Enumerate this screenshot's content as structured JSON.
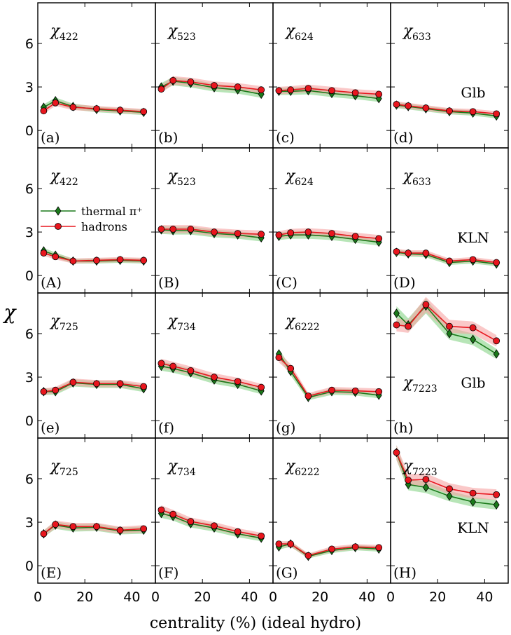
{
  "chart_data": {
    "type": "line",
    "xlabel": "centrality (%)   (ideal hydro)",
    "ylabel": "χ",
    "xlim": [
      0,
      50
    ],
    "ylim": [
      -1.2,
      8.8
    ],
    "x_ticks": [
      0,
      20,
      40
    ],
    "y_ticks": [
      0,
      3,
      6
    ],
    "x": [
      2.5,
      7.5,
      15,
      25,
      35,
      45
    ],
    "series_names": [
      "thermal π⁺",
      "hadrons"
    ],
    "series_colors": [
      "#1a7a1a",
      "#e8161e"
    ],
    "band_colors": [
      "#7ccf7c",
      "#f6a3a3"
    ],
    "panels": [
      {
        "label": "(a)",
        "chi": "χ",
        "sub": "422",
        "model": "Glb",
        "green": [
          1.6,
          2.05,
          1.65,
          1.45,
          1.35,
          1.25
        ],
        "red": [
          1.35,
          1.9,
          1.6,
          1.5,
          1.4,
          1.3
        ]
      },
      {
        "label": "(b)",
        "chi": "χ",
        "sub": "523",
        "green": [
          3.0,
          3.4,
          3.25,
          2.95,
          2.8,
          2.5
        ],
        "red": [
          2.85,
          3.45,
          3.35,
          3.1,
          3.0,
          2.8
        ]
      },
      {
        "label": "(c)",
        "chi": "χ",
        "sub": "624",
        "green": [
          2.7,
          2.7,
          2.75,
          2.55,
          2.4,
          2.2
        ],
        "red": [
          2.75,
          2.8,
          2.9,
          2.75,
          2.6,
          2.5
        ]
      },
      {
        "label": "(d)",
        "chi": "χ",
        "sub": "633",
        "green": [
          1.75,
          1.65,
          1.5,
          1.3,
          1.2,
          1.0
        ],
        "red": [
          1.8,
          1.7,
          1.55,
          1.35,
          1.3,
          1.15
        ]
      },
      {
        "label": "(A)",
        "chi": "χ",
        "sub": "422",
        "model": "KLN",
        "legend": true,
        "green": [
          1.7,
          1.4,
          1.0,
          1.0,
          1.05,
          1.0
        ],
        "red": [
          1.55,
          1.3,
          1.0,
          1.05,
          1.1,
          1.05
        ]
      },
      {
        "label": "(B)",
        "chi": "χ",
        "sub": "523",
        "green": [
          3.15,
          3.1,
          3.1,
          2.9,
          2.8,
          2.6
        ],
        "red": [
          3.2,
          3.2,
          3.2,
          3.0,
          2.9,
          2.85
        ]
      },
      {
        "label": "(C)",
        "chi": "χ",
        "sub": "624",
        "green": [
          2.7,
          2.8,
          2.8,
          2.7,
          2.5,
          2.3
        ],
        "red": [
          2.8,
          2.95,
          3.0,
          2.9,
          2.7,
          2.55
        ]
      },
      {
        "label": "(D)",
        "chi": "χ",
        "sub": "633",
        "green": [
          1.6,
          1.5,
          1.45,
          0.9,
          1.0,
          0.8
        ],
        "red": [
          1.65,
          1.55,
          1.55,
          1.0,
          1.1,
          0.9
        ]
      },
      {
        "label": "(e)",
        "chi": "χ",
        "sub": "725",
        "model": "Glb",
        "green": [
          2.0,
          2.0,
          2.6,
          2.5,
          2.5,
          2.2
        ],
        "red": [
          2.0,
          2.1,
          2.65,
          2.55,
          2.55,
          2.35
        ]
      },
      {
        "label": "(f)",
        "chi": "χ",
        "sub": "734",
        "green": [
          3.75,
          3.6,
          3.3,
          2.8,
          2.5,
          2.05
        ],
        "red": [
          3.95,
          3.75,
          3.45,
          3.0,
          2.7,
          2.3
        ]
      },
      {
        "label": "(g)",
        "chi": "χ",
        "sub": "6222",
        "green": [
          4.6,
          3.4,
          1.6,
          2.0,
          1.95,
          1.75
        ],
        "red": [
          4.35,
          3.6,
          1.7,
          2.1,
          2.05,
          2.0
        ]
      },
      {
        "label": "(h)",
        "chi": "χ",
        "sub": "7223",
        "subLow": true,
        "green": [
          7.4,
          6.6,
          7.9,
          6.0,
          5.6,
          4.6
        ],
        "red": [
          6.6,
          6.5,
          8.0,
          6.5,
          6.4,
          5.5
        ]
      },
      {
        "label": "(E)",
        "chi": "χ",
        "sub": "725",
        "model": "KLN",
        "green": [
          2.2,
          2.8,
          2.6,
          2.65,
          2.4,
          2.45
        ],
        "red": [
          2.2,
          2.85,
          2.7,
          2.7,
          2.45,
          2.55
        ]
      },
      {
        "label": "(F)",
        "chi": "χ",
        "sub": "734",
        "green": [
          3.6,
          3.4,
          2.9,
          2.6,
          2.2,
          1.9
        ],
        "red": [
          3.85,
          3.55,
          3.05,
          2.75,
          2.35,
          2.05
        ]
      },
      {
        "label": "(G)",
        "chi": "χ",
        "sub": "6222",
        "green": [
          1.3,
          1.5,
          0.65,
          1.05,
          1.25,
          1.15
        ],
        "red": [
          1.5,
          1.5,
          0.7,
          1.15,
          1.3,
          1.25
        ]
      },
      {
        "label": "(H)",
        "chi": "χ",
        "sub": "7223",
        "green": [
          7.8,
          5.6,
          5.4,
          4.8,
          4.4,
          4.2
        ],
        "red": [
          7.8,
          5.9,
          5.95,
          5.3,
          5.0,
          4.9
        ]
      }
    ]
  }
}
